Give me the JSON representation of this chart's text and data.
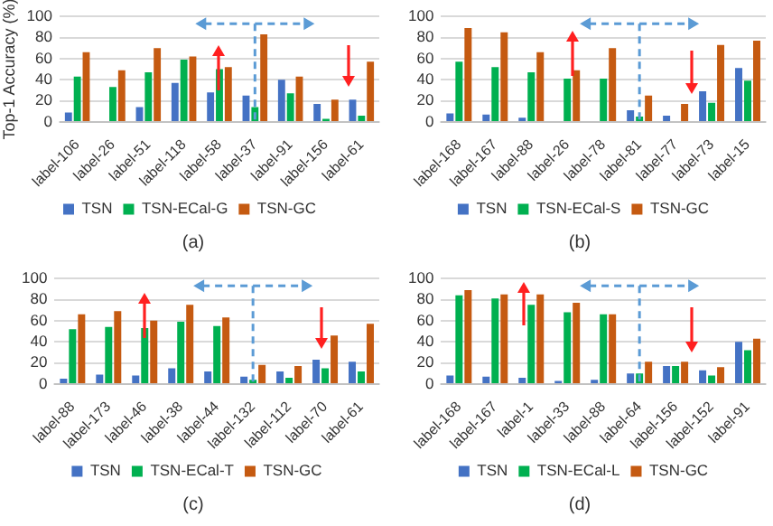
{
  "chart_data": [
    {
      "type": "bar",
      "ylabel": "Top-1 Accuracy (%)",
      "categories": [
        "label-106",
        "label-26",
        "label-51",
        "label-118",
        "label-58",
        "label-37",
        "label-91",
        "label-156",
        "label-61"
      ],
      "series": [
        {
          "name": "TSN",
          "color": "#4472c4",
          "values": [
            9,
            0,
            14,
            37,
            28,
            25,
            40,
            17,
            21
          ]
        },
        {
          "name": "TSN-ECal-G",
          "color": "#00b050",
          "values": [
            43,
            33,
            47,
            59,
            50,
            14,
            27,
            3,
            6
          ]
        },
        {
          "name": "TSN-GC",
          "color": "#c55a11",
          "values": [
            66,
            49,
            70,
            62,
            52,
            83,
            43,
            21,
            57
          ]
        }
      ],
      "ylim": [
        0,
        100
      ],
      "yticks": [
        0,
        20,
        40,
        60,
        80,
        100
      ],
      "grid": "y",
      "legend": "bottom",
      "annotations": [
        "(a)"
      ],
      "ref_lines": [
        {
          "axis": "x",
          "value": "label-37",
          "color": "#5b9bd5",
          "line_style": "dashed"
        }
      ]
    },
    {
      "type": "bar",
      "categories": [
        "label-168",
        "label-167",
        "label-88",
        "label-26",
        "label-78",
        "label-81",
        "label-77",
        "label-73",
        "label-15"
      ],
      "series": [
        {
          "name": "TSN",
          "color": "#4472c4",
          "values": [
            8,
            7,
            4,
            0,
            0,
            11,
            6,
            29,
            51
          ]
        },
        {
          "name": "TSN-ECal-S",
          "color": "#00b050",
          "values": [
            57,
            52,
            47,
            41,
            41,
            5,
            0,
            18,
            39
          ]
        },
        {
          "name": "TSN-GC",
          "color": "#c55a11",
          "values": [
            89,
            85,
            66,
            49,
            70,
            25,
            17,
            73,
            77
          ]
        }
      ],
      "ylim": [
        0,
        100
      ],
      "yticks": [
        0,
        20,
        40,
        60,
        80,
        100
      ],
      "grid": "y",
      "legend": "bottom",
      "annotations": [
        "(b)"
      ],
      "ref_lines": [
        {
          "axis": "x",
          "value": "label-81",
          "color": "#5b9bd5",
          "line_style": "dashed"
        }
      ]
    },
    {
      "type": "bar",
      "categories": [
        "label-88",
        "label-173",
        "label-46",
        "label-38",
        "label-44",
        "label-132",
        "label-112",
        "label-70",
        "label-61"
      ],
      "series": [
        {
          "name": "TSN",
          "color": "#4472c4",
          "values": [
            5,
            9,
            8,
            15,
            12,
            7,
            12,
            23,
            21
          ]
        },
        {
          "name": "TSN-ECal-T",
          "color": "#00b050",
          "values": [
            52,
            54,
            53,
            59,
            55,
            4,
            6,
            15,
            12
          ]
        },
        {
          "name": "TSN-GC",
          "color": "#c55a11",
          "values": [
            66,
            69,
            60,
            75,
            63,
            18,
            17,
            46,
            57
          ]
        }
      ],
      "ylim": [
        0,
        100
      ],
      "yticks": [
        0,
        20,
        40,
        60,
        80,
        100
      ],
      "grid": "y",
      "legend": "bottom",
      "annotations": [
        "(c)"
      ],
      "ref_lines": [
        {
          "axis": "x",
          "value": "label-132",
          "color": "#5b9bd5",
          "line_style": "dashed"
        }
      ]
    },
    {
      "type": "bar",
      "categories": [
        "label-168",
        "label-167",
        "label-1",
        "label-33",
        "label-88",
        "label-64",
        "label-156",
        "label-152",
        "label-91"
      ],
      "series": [
        {
          "name": "TSN",
          "color": "#4472c4",
          "values": [
            8,
            7,
            6,
            3,
            4,
            10,
            17,
            13,
            40
          ]
        },
        {
          "name": "TSN-ECal-L",
          "color": "#00b050",
          "values": [
            84,
            81,
            75,
            68,
            66,
            10,
            17,
            8,
            32
          ]
        },
        {
          "name": "TSN-GC",
          "color": "#c55a11",
          "values": [
            89,
            85,
            85,
            77,
            66,
            21,
            21,
            16,
            43
          ]
        }
      ],
      "ylim": [
        0,
        100
      ],
      "yticks": [
        0,
        20,
        40,
        60,
        80,
        100
      ],
      "grid": "y",
      "legend": "bottom",
      "annotations": [
        "(d)"
      ],
      "ref_lines": [
        {
          "axis": "x",
          "value": "label-64",
          "color": "#5b9bd5",
          "line_style": "dashed"
        }
      ]
    }
  ]
}
